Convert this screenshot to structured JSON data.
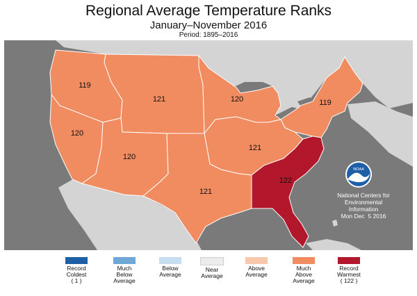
{
  "header": {
    "title": "Regional Average Temperature Ranks",
    "subtitle": "January–November 2016",
    "period": "Period: 1895–2016"
  },
  "colors": {
    "ocean": "#7a7a7a",
    "land_background": "#d4d4d4",
    "much_above": "#f08c60",
    "record_warmest": "#b3172b",
    "boundary": "#ffffff"
  },
  "regions": [
    {
      "name": "Northwest",
      "rank": "119",
      "category": "much_above"
    },
    {
      "name": "West North Central",
      "rank": "121",
      "category": "much_above"
    },
    {
      "name": "East North Central",
      "rank": "120",
      "category": "much_above"
    },
    {
      "name": "Northeast",
      "rank": "119",
      "category": "much_above"
    },
    {
      "name": "West",
      "rank": "120",
      "category": "much_above"
    },
    {
      "name": "Southwest",
      "rank": "120",
      "category": "much_above"
    },
    {
      "name": "Central",
      "rank": "121",
      "category": "much_above"
    },
    {
      "name": "South",
      "rank": "121",
      "category": "much_above"
    },
    {
      "name": "Southeast",
      "rank": "122",
      "category": "record_warmest"
    }
  ],
  "noaa": {
    "logo_text": "NOAA",
    "lines": [
      "National Centers for",
      "Environmental",
      "Information",
      "Mon Dec  5 2016"
    ]
  },
  "legend": [
    {
      "lines": [
        "Record",
        "Coldest",
        "( 1 )"
      ],
      "color": "#1f5fa8"
    },
    {
      "lines": [
        "Much",
        "Below",
        "Average"
      ],
      "color": "#6fa8d6"
    },
    {
      "lines": [
        "Below",
        "Average"
      ],
      "color": "#c6def0"
    },
    {
      "lines": [
        "Near",
        "Average"
      ],
      "color": "#ececec"
    },
    {
      "lines": [
        "Above",
        "Average"
      ],
      "color": "#f7c8ac"
    },
    {
      "lines": [
        "Much",
        "Above",
        "Average"
      ],
      "color": "#f08c60"
    },
    {
      "lines": [
        "Record",
        "Warmest",
        "( 122 )"
      ],
      "color": "#b3172b"
    }
  ]
}
